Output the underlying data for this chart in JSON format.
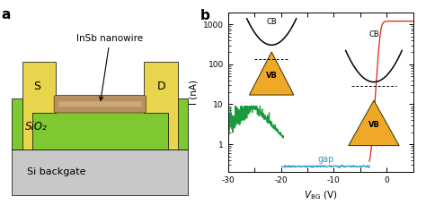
{
  "panel_a": {
    "label": "a",
    "nanowire_label": "InSb nanowire",
    "source_label": "S",
    "drain_label": "D",
    "sio2_label": "SiO₂",
    "backgate_label": "Si backgate",
    "si_color": "#c8c8c8",
    "sio2_base_color": "#7ec832",
    "sio2_top_color": "#a8d84a",
    "contact_color": "#e8d44d",
    "nanowire_color": "#b89060",
    "nanowire_hi_color": "#d4b080"
  },
  "panel_b": {
    "label": "b",
    "ylabel": "I (nA)",
    "gap_label": "gap",
    "gap_label_color": "#3399cc",
    "xlim": [
      -30,
      5
    ],
    "ylim_lo": 0.2,
    "ylim_hi": 2000,
    "green_color": "#1a9c3e",
    "blue_color": "#3399cc",
    "red_color": "#e02010",
    "xticks": [
      -30,
      -25,
      -20,
      -15,
      -10,
      -5,
      0,
      5
    ],
    "xtick_labels": [
      "-30",
      "",
      "-20",
      "",
      "-10",
      "",
      "0",
      ""
    ],
    "yticks": [
      1,
      10,
      100,
      1000
    ],
    "ytick_labels": [
      "1",
      "10",
      "100",
      "1000"
    ]
  }
}
